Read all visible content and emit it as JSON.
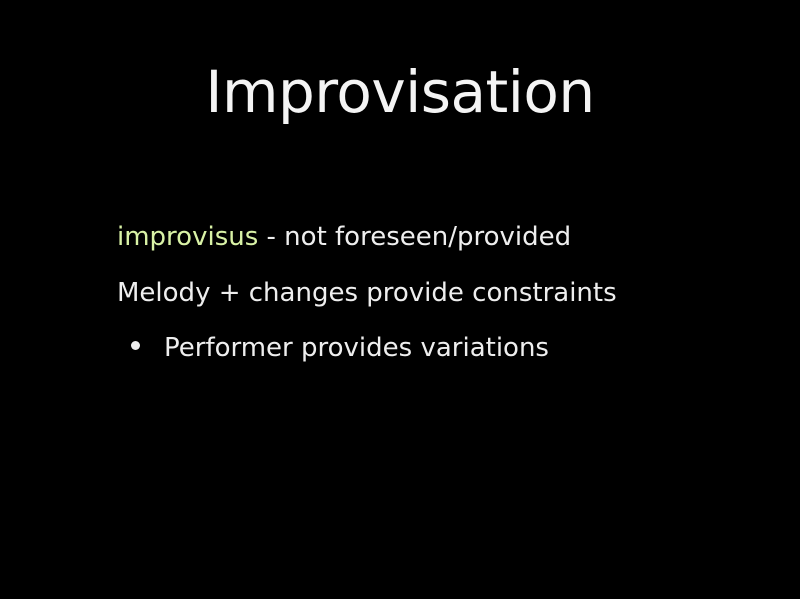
{
  "slide": {
    "title": "Improvisation",
    "items": [
      {
        "highlight": "improvisus",
        "text": " - not foreseen/provided"
      },
      {
        "text": "Melody + changes provide constraints"
      },
      {
        "text": "Performer provides variations",
        "bullet": true
      }
    ]
  },
  "colors": {
    "background": "#000000",
    "text": "#eeeeee",
    "accent": "#d9f2a6"
  }
}
